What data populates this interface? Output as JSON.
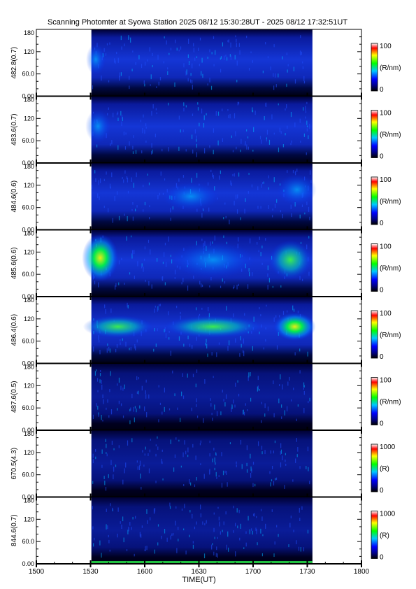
{
  "title": "Scanning Photomter at Syowa Station  2025 08/12 15:30:28UT - 2025 08/12 17:32:51UT",
  "chart_data": {
    "type": "heatmap",
    "xlabel": "TIME(UT)",
    "x_ticks": [
      "1500",
      "1530",
      "1600",
      "1630",
      "1700",
      "1730",
      "1800"
    ],
    "x_range": [
      "15:00",
      "18:00"
    ],
    "data_range": [
      "15:30:28",
      "17:32:51"
    ],
    "y_ticks": [
      "0.00",
      "60.0",
      "120",
      "180"
    ],
    "y_range": [
      0,
      180
    ],
    "panels": [
      {
        "ylabel": "482.8(0.7)",
        "cb_max": "100",
        "cb_min": "0",
        "unit": "(R/nm)"
      },
      {
        "ylabel": "483.6(0.7)",
        "cb_max": "100",
        "cb_min": "0",
        "unit": "(R/nm)"
      },
      {
        "ylabel": "484.6(0.6)",
        "cb_max": "100",
        "cb_min": "0",
        "unit": "(R/nm)"
      },
      {
        "ylabel": "485.6(0.6)",
        "cb_max": "100",
        "cb_min": "0",
        "unit": "(R/nm)"
      },
      {
        "ylabel": "486.4(0.6)",
        "cb_max": "100",
        "cb_min": "0",
        "unit": "(R/nm)"
      },
      {
        "ylabel": "487.6(0.5)",
        "cb_max": "100",
        "cb_min": "0",
        "unit": "(R/nm)"
      },
      {
        "ylabel": "670.5(4.3)",
        "cb_max": "1000",
        "cb_min": "0",
        "unit": "(R)"
      },
      {
        "ylabel": "844.6(0.7)",
        "cb_max": "1000",
        "cb_min": "0",
        "unit": "(R)"
      }
    ],
    "colormap": [
      "#000000",
      "#00008b",
      "#0000ff",
      "#00c8ff",
      "#00ff00",
      "#ffff00",
      "#ff0000",
      "#ffffff"
    ]
  }
}
